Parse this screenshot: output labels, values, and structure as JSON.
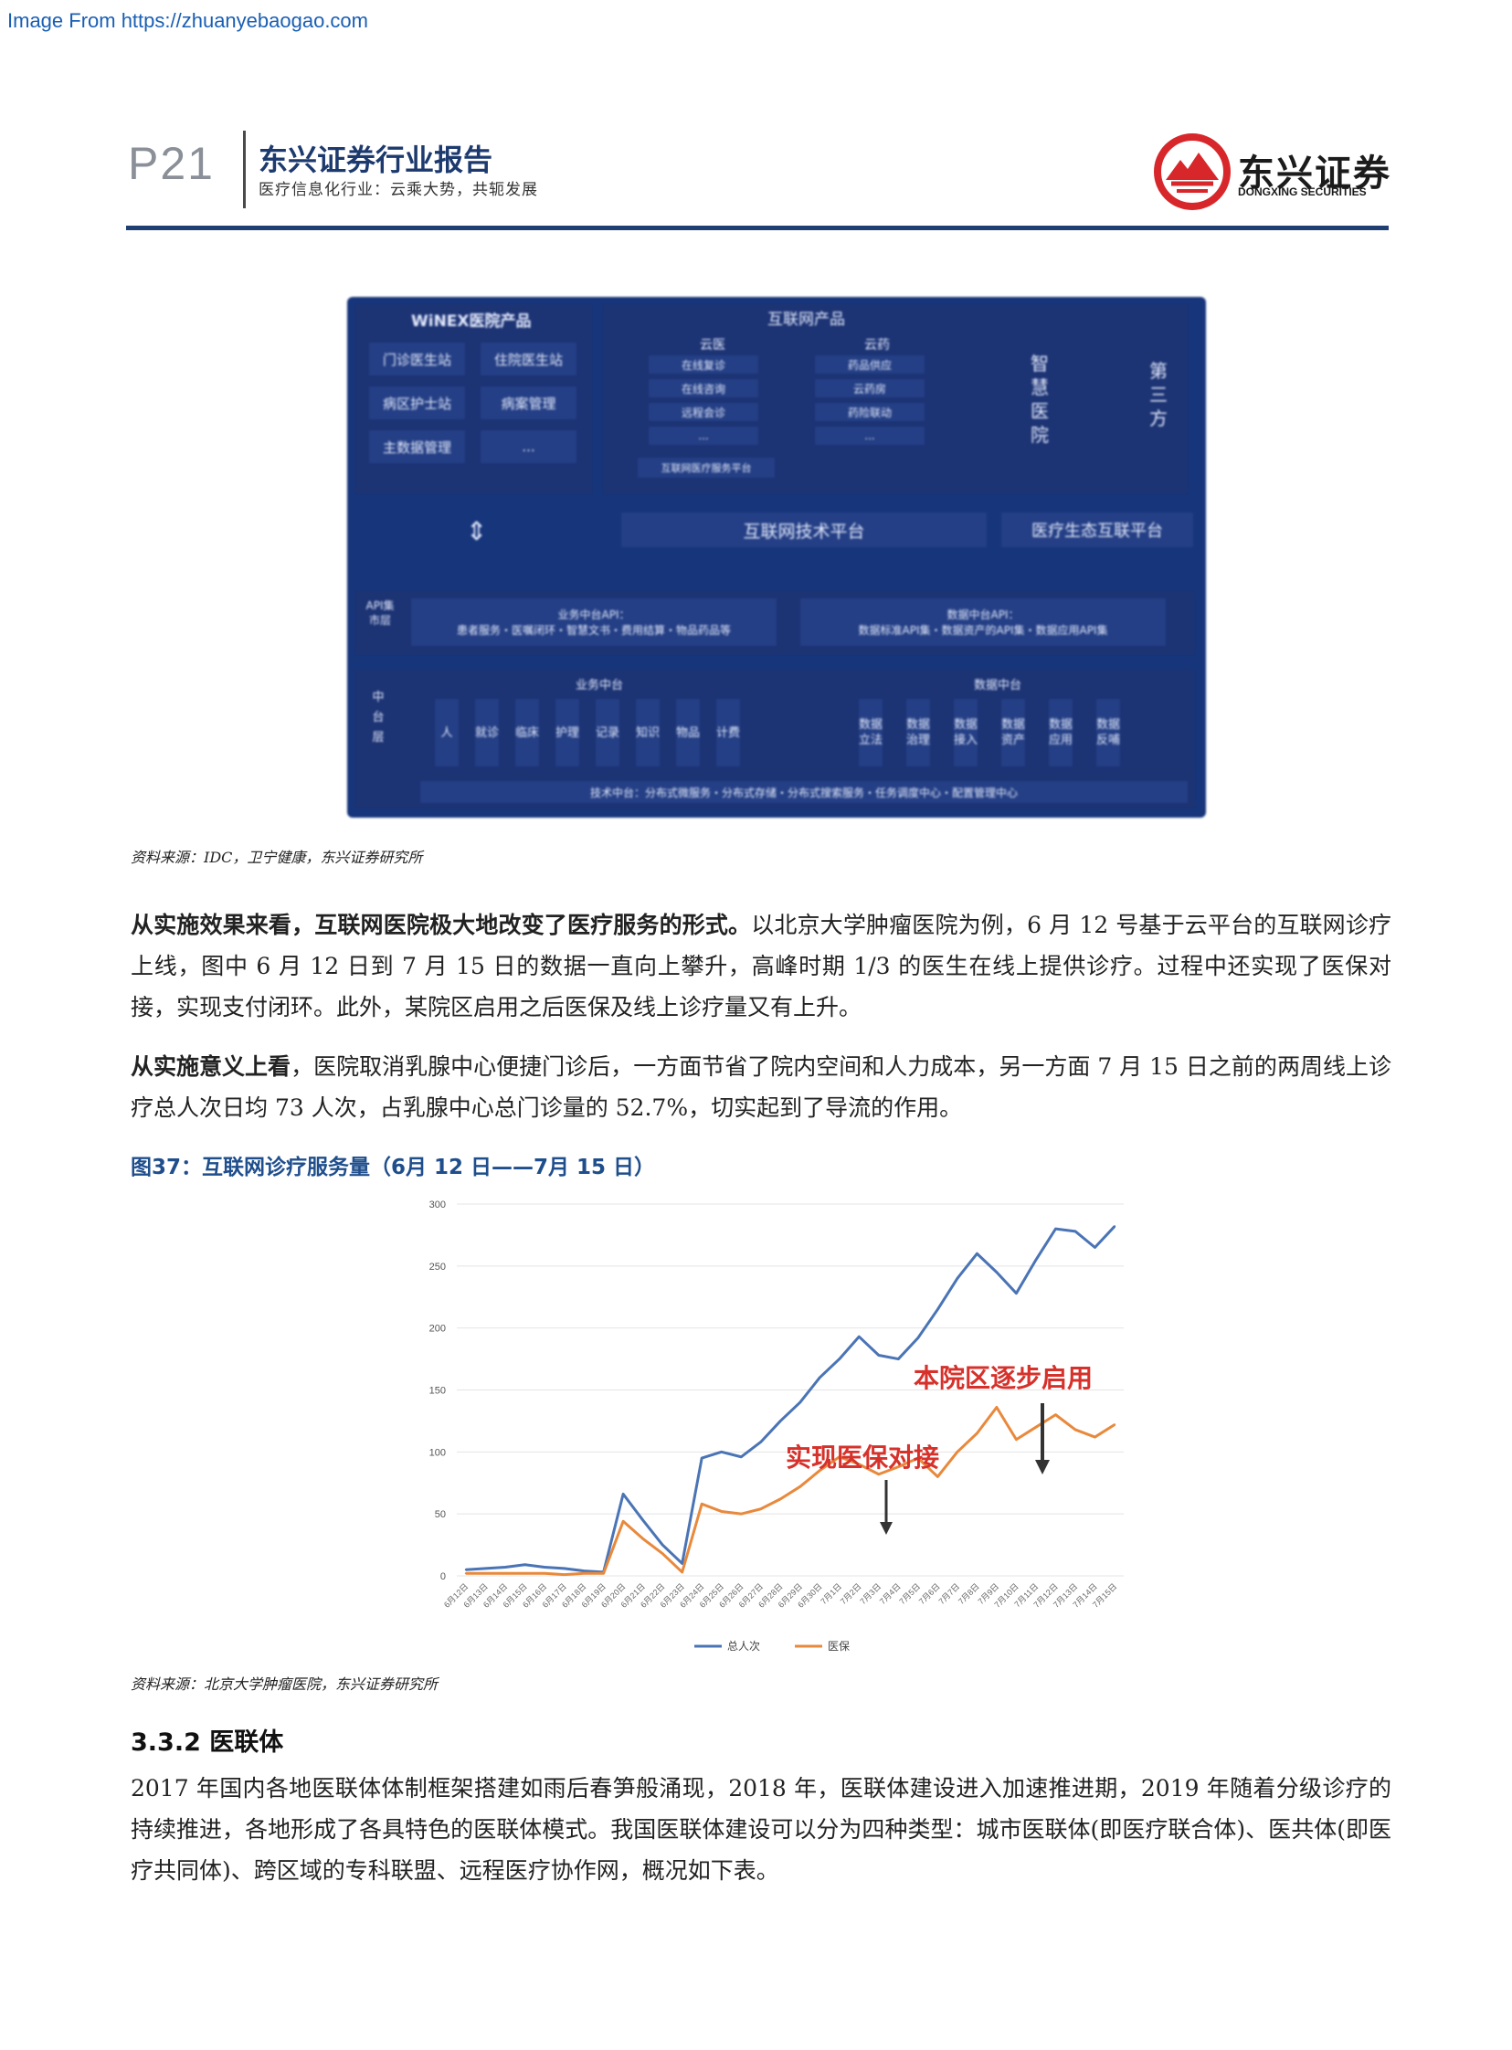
{
  "watermark": "Image From https://zhuanyebaogao.com",
  "header": {
    "page_no": "P21",
    "title": "东兴证券行业报告",
    "subtitle": "医疗信息化行业：云乘大势，共轭发展",
    "brand_cn": "东兴证券",
    "brand_en": "DONGXING SECURITIES",
    "brand_color": "#d7272a",
    "rule_color": "#1f3f73"
  },
  "arch": {
    "winex_title": "WiNEX医院产品",
    "winex_items": [
      "门诊医生站",
      "住院医生站",
      "病区护士站",
      "病案管理",
      "主数据管理",
      "..."
    ],
    "internet_title": "互联网产品",
    "cloud_hospital": "云医",
    "cloud_hospital_items": [
      "在线复诊",
      "在线咨询",
      "远程会诊",
      "..."
    ],
    "cloud_pharmacy": "云药",
    "cloud_pharmacy_items": [
      "药品供应",
      "云药房",
      "药险联动",
      "..."
    ],
    "internet_service_platform": "互联网医疗服务平台",
    "smart_hospital": "智慧医院",
    "third_party": "第三方",
    "internet_tech_platform": "互联网技术平台",
    "eco_platform": "医疗生态互联平台",
    "api_label": "API集市层",
    "biz_api_title": "业务中台API：",
    "biz_api_desc": "患者服务・医嘱闭环・智慧文书・费用结算・物品药品等",
    "data_api_title": "数据中台API：",
    "data_api_desc": "数据标准API集・数据资产的API集・数据应用API集",
    "middle_label": "中台层",
    "biz_middle": "业务中台",
    "biz_cols": [
      "人",
      "就诊",
      "临床",
      "护理",
      "记录",
      "知识",
      "物品",
      "计费"
    ],
    "data_middle": "数据中台",
    "data_cols": [
      "数据立法",
      "数据治理",
      "数据接入",
      "数据资产",
      "数据应用",
      "数据反哺"
    ],
    "tech_middle": "技术中台：分布式微服务・分布式存储・分布式搜索服务・任务调度中心・配置管理中心"
  },
  "source1": "资料来源：IDC，卫宁健康，东兴证券研究所",
  "para1": {
    "bold": "从实施效果来看，互联网医院极大地改变了医疗服务的形式。",
    "text": "以北京大学肿瘤医院为例，6 月 12 号基于云平台的互联网诊疗上线，图中 6 月 12 日到 7 月 15 日的数据一直向上攀升，高峰时期 1/3 的医生在线上提供诊疗。过程中还实现了医保对接，实现支付闭环。此外，某院区启用之后医保及线上诊疗量又有上升。"
  },
  "para2": {
    "bold": "从实施意义上看",
    "text": "，医院取消乳腺中心便捷门诊后，一方面节省了院内空间和人力成本，另一方面 7 月 15 日之前的两周线上诊疗总人次日均 73 人次，占乳腺中心总门诊量的 52.7%，切实起到了导流的作用。"
  },
  "figure_caption": "图37：互联网诊疗服务量（6月 12 日——7月 15 日）",
  "chart_data": {
    "type": "line",
    "title": "",
    "x": [
      "6月12日",
      "6月13日",
      "6月14日",
      "6月15日",
      "6月16日",
      "6月17日",
      "6月18日",
      "6月19日",
      "6月20日",
      "6月21日",
      "6月22日",
      "6月23日",
      "6月24日",
      "6月25日",
      "6月26日",
      "6月27日",
      "6月28日",
      "6月29日",
      "6月30日",
      "7月1日",
      "7月2日",
      "7月3日",
      "7月4日",
      "7月5日",
      "7月6日",
      "7月7日",
      "7月8日",
      "7月9日",
      "7月10日",
      "7月11日",
      "7月12日",
      "7月13日",
      "7月14日",
      "7月15日"
    ],
    "series": [
      {
        "name": "总人次",
        "color": "#4a74b5",
        "values": [
          5,
          6,
          7,
          9,
          7,
          6,
          4,
          3,
          66,
          45,
          25,
          10,
          95,
          100,
          96,
          108,
          125,
          140,
          160,
          175,
          193,
          178,
          175,
          192,
          215,
          240,
          260,
          245,
          228,
          255,
          280,
          278,
          265,
          282
        ]
      },
      {
        "name": "医保",
        "color": "#e8893c",
        "values": [
          2,
          2,
          2,
          2,
          2,
          1,
          2,
          2,
          44,
          30,
          18,
          3,
          58,
          52,
          50,
          54,
          62,
          72,
          85,
          96,
          90,
          82,
          88,
          95,
          80,
          100,
          115,
          136,
          110,
          120,
          130,
          118,
          112,
          122
        ]
      }
    ],
    "ylim": [
      0,
      300
    ],
    "yticks": [
      0,
      50,
      100,
      150,
      200,
      250,
      300
    ],
    "annotations": [
      {
        "text": "实现医保对接",
        "color": "#d6312b"
      },
      {
        "text": "本院区逐步启用",
        "color": "#d6312b"
      }
    ],
    "legend": "bottom",
    "grid": true
  },
  "source2": "资料来源：北京大学肿瘤医院，东兴证券研究所",
  "section_heading": "3.3.2 医联体",
  "para3": "2017 年国内各地医联体体制框架搭建如雨后春笋般涌现，2018 年，医联体建设进入加速推进期，2019 年随着分级诊疗的持续推进，各地形成了各具特色的医联体模式。我国医联体建设可以分为四种类型：城市医联体(即医疗联合体)、医共体(即医疗共同体)、跨区域的专科联盟、远程医疗协作网，概况如下表。"
}
